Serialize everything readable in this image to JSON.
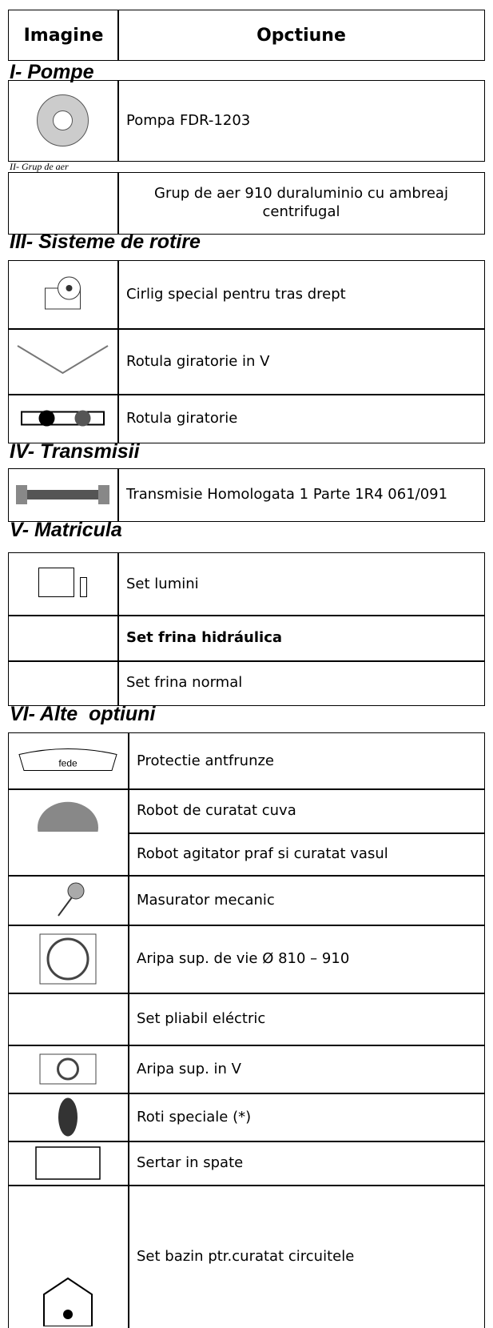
{
  "header": {
    "image": "Imagine",
    "option": "Opctiune"
  },
  "sections": [
    {
      "title": "I- Pompe",
      "rows": [
        "Pompa FDR-1203"
      ]
    },
    {
      "title": "II- Grup de aer",
      "rows": [
        "Grup de aer 910 duraluminio cu ambreaj centrifugal"
      ]
    },
    {
      "title": "III- Sisteme de rotire",
      "rows": [
        "Cirlig special pentru tras drept",
        "Rotula giratorie in V",
        "Rotula giratorie"
      ]
    },
    {
      "title": "IV- Transmisii",
      "rows": [
        "Transmisie Homologata 1 Parte 1R4 061/091"
      ]
    },
    {
      "title": "V- Matricula",
      "rows": [
        "Set lumini",
        "Set frina hidráulica",
        "Set frina normal"
      ]
    },
    {
      "title": "VI- Alte  optiuni",
      "rows": [
        "Protectie antfrunze",
        "Robot de curatat cuva",
        "Robot agitator praf si curatat vasul",
        "Masurator mecanic",
        "Aripa sup. de vie Ø 810 – 910",
        "Set pliabil eléctric",
        "Aripa sup. in V",
        "Roti speciale (*)",
        "Sertar in spate",
        "Set bazin ptr.curatat circuitele"
      ]
    }
  ]
}
